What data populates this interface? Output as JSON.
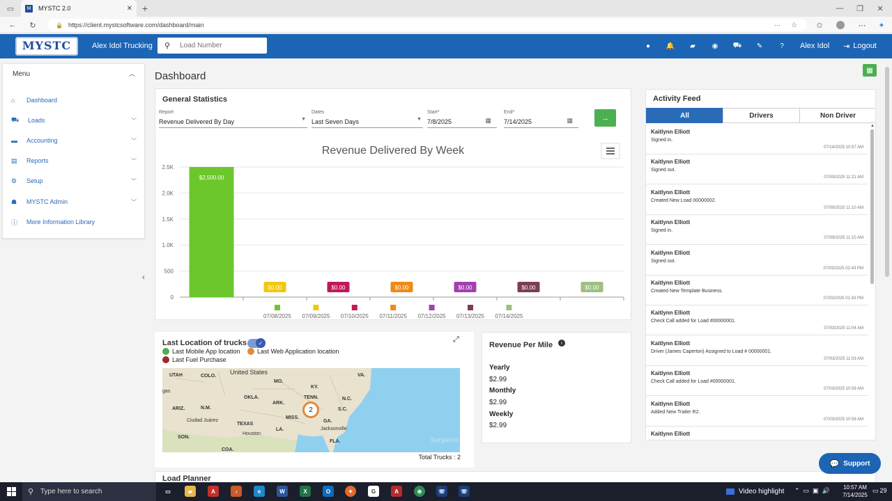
{
  "browser": {
    "tab_title": "MYSTC 2.0",
    "url": "https://client.mystcsoftware.com/dashboard/main"
  },
  "header": {
    "logo_text": "MYSTC",
    "company": "Alex Idol Trucking",
    "search_placeholder": "Load Number",
    "user": "Alex Idol",
    "logout": "Logout"
  },
  "sidebar": {
    "title": "Menu",
    "items": [
      {
        "label": "Dashboard"
      },
      {
        "label": "Loads"
      },
      {
        "label": "Accounting"
      },
      {
        "label": "Reports"
      },
      {
        "label": "Setup"
      },
      {
        "label": "MYSTC Admin"
      },
      {
        "label": "More Information Library"
      }
    ]
  },
  "page": {
    "title": "Dashboard"
  },
  "general_stats": {
    "title": "General Statistics",
    "report_label": "Report",
    "report_value": "Revenue Delivered By Day",
    "dates_label": "Dates",
    "dates_value": "Last Seven Days",
    "start_label": "Start*",
    "start_value": "7/8/2025",
    "end_label": "End*",
    "end_value": "7/14/2025"
  },
  "chart_data": {
    "type": "bar",
    "title": "Revenue Delivered By Week",
    "categories": [
      "07/08/2025",
      "07/09/2025",
      "07/10/2025",
      "07/11/2025",
      "07/12/2025",
      "07/13/2025",
      "07/14/2025"
    ],
    "values": [
      2500,
      0,
      0,
      0,
      0,
      0,
      0
    ],
    "data_labels": [
      "$2,500.00",
      "$0.00",
      "$0.00",
      "$0.00",
      "$0.00",
      "$0.00",
      "$0.00"
    ],
    "colors": [
      "#6cc72c",
      "#f2c80f",
      "#c2185b",
      "#ef8a17",
      "#a43fb0",
      "#7b3f55",
      "#9fbf80"
    ],
    "ylim": [
      0,
      2500
    ],
    "yticks": [
      0,
      500,
      1000,
      1500,
      2000,
      2500
    ],
    "ytick_labels": [
      "0",
      "500",
      "1.0K",
      "1.5K",
      "2.0K",
      "2.5K"
    ],
    "legend": "bottom"
  },
  "map_card": {
    "title": "Last Location of trucks",
    "legend": [
      {
        "label": "Last Mobile App location",
        "color": "#4caf50"
      },
      {
        "label": "Last Web Application location",
        "color": "#e08a3c"
      },
      {
        "label": "Last Fuel Purchase",
        "color": "#a12a2a"
      }
    ],
    "cluster_count": "2",
    "total_trucks": "Total Trucks : 2",
    "map_labels": [
      "UTAH",
      "COLO.",
      "United States",
      "MO.",
      "KY.",
      "VA.",
      "OKLA.",
      "ARK.",
      "TENN.",
      "N.C.",
      "gas",
      "ARIZ.",
      "N.M.",
      "Ciudad Juárez",
      "TEXAS",
      "MISS.",
      "S.C.",
      "GA.",
      "LA.",
      "Jacksonville",
      "SON.",
      "Houston",
      "FLA.",
      "COA.",
      "Sargasso"
    ]
  },
  "rpm": {
    "title": "Revenue Per Mile",
    "yearly_label": "Yearly",
    "yearly_value": "$2.99",
    "monthly_label": "Monthly",
    "monthly_value": "$2.99",
    "weekly_label": "Weekly",
    "weekly_value": "$2.99"
  },
  "activity": {
    "title": "Activity Feed",
    "tabs": [
      "All",
      "Drivers",
      "Non Driver"
    ],
    "items": [
      {
        "name": "Kaitlynn Elliott",
        "text": "Signed in.",
        "date": "07/14/2025 10:57 AM"
      },
      {
        "name": "Kaitlynn Elliott",
        "text": "Signed out.",
        "date": "07/09/2025 11:21 AM"
      },
      {
        "name": "Kaitlynn Elliott",
        "text": "Created New Load 00000002.",
        "date": "07/09/2025 11:10 AM"
      },
      {
        "name": "Kaitlynn Elliott",
        "text": "Signed in.",
        "date": "07/09/2025 11:10 AM"
      },
      {
        "name": "Kaitlynn Elliott",
        "text": "Signed out.",
        "date": "07/03/2025 02:43 PM"
      },
      {
        "name": "Kaitlynn Elliott",
        "text": "Created New Template Business.",
        "date": "07/03/2025 01:43 PM"
      },
      {
        "name": "Kaitlynn Elliott",
        "text": "Check Call added for Load #00000001.",
        "date": "07/03/2025 11:04 AM"
      },
      {
        "name": "Kaitlynn Elliott",
        "text": "Driver (James Caperton) Assigned to Load # 00000001.",
        "date": "07/03/2025 11:03 AM"
      },
      {
        "name": "Kaitlynn Elliott",
        "text": "Check Call added for Load #00000001.",
        "date": "07/03/2025 10:58 AM"
      },
      {
        "name": "Kaitlynn Elliott",
        "text": "Added New Trailer R2.",
        "date": "07/03/2025 10:58 AM"
      },
      {
        "name": "Kaitlynn Elliott",
        "text": "",
        "date": ""
      }
    ]
  },
  "support": {
    "label": "Support"
  },
  "load_planner": {
    "title": "Load Planner"
  },
  "taskbar": {
    "search_placeholder": "Type here to search",
    "video_highlight": "Video highlight",
    "time": "10:57 AM",
    "date": "7/14/2025",
    "notif_count": "29"
  }
}
